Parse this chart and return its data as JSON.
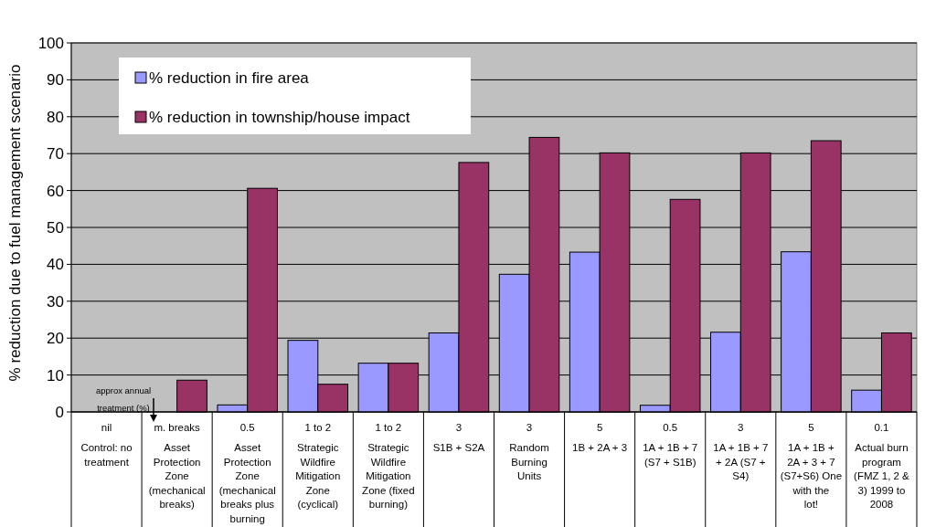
{
  "chart_data": {
    "type": "bar",
    "ylabel": "% reduction due to fuel management scenario",
    "categories": [
      "nil\nControl: no treatment",
      "m. breaks\nAsset Protection Zone (mechanical breaks)",
      "0.5\nAsset Protection Zone (mechanical breaks plus burning",
      "1 to 2\nStrategic Wildfire Mitigation Zone (cyclical)",
      "1 to 2\nStrategic Wildfire Mitigation Zone (fixed burning)",
      "3\nS1B + S2A",
      "3\nRandom Burning Units",
      "5\n1B + 2A + 3",
      "0.5\n1A + 1B + 7 (S7 + S1B)",
      "3\n1A + 1B + 7 + 2A (S7 + S4)",
      "5\n1A + 1B + 2A + 3 + 7 (S7+S6) One with the lot!",
      "0.1\nActual burn program (FMZ 1, 2 & 3) 1999 to 2008"
    ],
    "series": [
      {
        "name": "% reduction in fire area",
        "color": "#9999ff",
        "values": [
          0,
          0,
          1.9,
          19.4,
          13.2,
          21.4,
          37.3,
          43.3,
          1.8,
          21.6,
          43.4,
          5.9
        ]
      },
      {
        "name": "% reduction in township/house impact",
        "color": "#993366",
        "values": [
          0,
          8.6,
          60.6,
          7.5,
          13.2,
          67.6,
          74.4,
          70.2,
          57.6,
          70.2,
          73.5,
          21.4
        ]
      }
    ],
    "ylim": [
      0,
      100
    ],
    "yticks": [
      0,
      10,
      20,
      30,
      40,
      50,
      60,
      70,
      80,
      90,
      100
    ],
    "grid": "y",
    "legend": "top left",
    "annotations": [
      "approx annual treatment (%)"
    ]
  }
}
